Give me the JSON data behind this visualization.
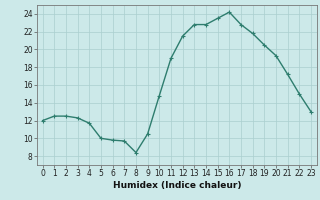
{
  "x": [
    0,
    1,
    2,
    3,
    4,
    5,
    6,
    7,
    8,
    9,
    10,
    11,
    12,
    13,
    14,
    15,
    16,
    17,
    18,
    19,
    20,
    21,
    22,
    23
  ],
  "y": [
    12.0,
    12.5,
    12.5,
    12.3,
    11.7,
    10.0,
    9.8,
    9.7,
    8.4,
    10.5,
    14.8,
    19.0,
    21.5,
    22.8,
    22.8,
    23.5,
    24.2,
    22.8,
    21.8,
    20.5,
    19.3,
    17.2,
    15.0,
    13.0
  ],
  "line_color": "#2e7d6e",
  "marker": "+",
  "marker_size": 3,
  "linewidth": 1.0,
  "xlabel": "Humidex (Indice chaleur)",
  "xlim": [
    -0.5,
    23.5
  ],
  "ylim": [
    7,
    25
  ],
  "yticks": [
    8,
    10,
    12,
    14,
    16,
    18,
    20,
    22,
    24
  ],
  "xticks": [
    0,
    1,
    2,
    3,
    4,
    5,
    6,
    7,
    8,
    9,
    10,
    11,
    12,
    13,
    14,
    15,
    16,
    17,
    18,
    19,
    20,
    21,
    22,
    23
  ],
  "background_color": "#cce9e9",
  "grid_color": "#aacfcf",
  "tick_fontsize": 5.5,
  "xlabel_fontsize": 6.5
}
